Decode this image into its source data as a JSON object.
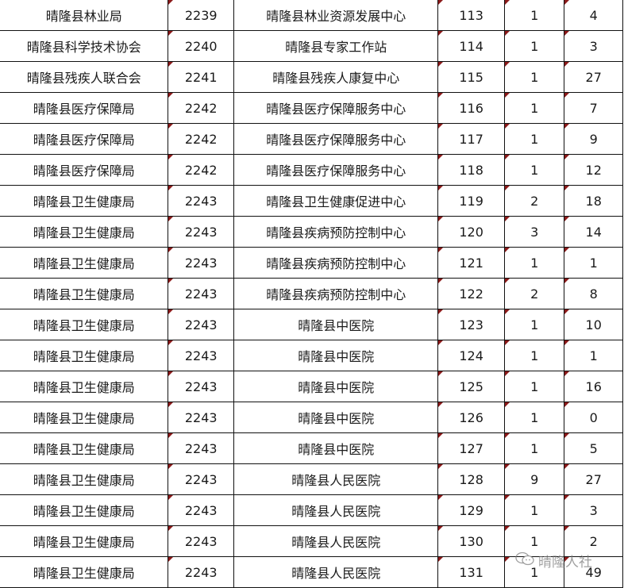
{
  "rows": [
    [
      "晴隆县林业局",
      "2239",
      "晴隆县林业资源发展中心",
      "113",
      "1",
      "4"
    ],
    [
      "晴隆县科学技术协会",
      "2240",
      "晴隆县专家工作站",
      "114",
      "1",
      "3"
    ],
    [
      "晴隆县残疾人联合会",
      "2241",
      "晴隆县残疾人康复中心",
      "115",
      "1",
      "27"
    ],
    [
      "晴隆县医疗保障局",
      "2242",
      "晴隆县医疗保障服务中心",
      "116",
      "1",
      "7"
    ],
    [
      "晴隆县医疗保障局",
      "2242",
      "晴隆县医疗保障服务中心",
      "117",
      "1",
      "9"
    ],
    [
      "晴隆县医疗保障局",
      "2242",
      "晴隆县医疗保障服务中心",
      "118",
      "1",
      "12"
    ],
    [
      "晴隆县卫生健康局",
      "2243",
      "晴隆县卫生健康促进中心",
      "119",
      "2",
      "18"
    ],
    [
      "晴隆县卫生健康局",
      "2243",
      "晴隆县疾病预防控制中心",
      "120",
      "3",
      "14"
    ],
    [
      "晴隆县卫生健康局",
      "2243",
      "晴隆县疾病预防控制中心",
      "121",
      "1",
      "1"
    ],
    [
      "晴隆县卫生健康局",
      "2243",
      "晴隆县疾病预防控制中心",
      "122",
      "2",
      "8"
    ],
    [
      "晴隆县卫生健康局",
      "2243",
      "晴隆县中医院",
      "123",
      "1",
      "10"
    ],
    [
      "晴隆县卫生健康局",
      "2243",
      "晴隆县中医院",
      "124",
      "1",
      "1"
    ],
    [
      "晴隆县卫生健康局",
      "2243",
      "晴隆县中医院",
      "125",
      "1",
      "16"
    ],
    [
      "晴隆县卫生健康局",
      "2243",
      "晴隆县中医院",
      "126",
      "1",
      "0"
    ],
    [
      "晴隆县卫生健康局",
      "2243",
      "晴隆县中医院",
      "127",
      "1",
      "5"
    ],
    [
      "晴隆县卫生健康局",
      "2243",
      "晴隆县人民医院",
      "128",
      "9",
      "27"
    ],
    [
      "晴隆县卫生健康局",
      "2243",
      "晴隆县人民医院",
      "129",
      "1",
      "3"
    ],
    [
      "晴隆县卫生健康局",
      "2243",
      "晴隆县人民医院",
      "130",
      "1",
      "2"
    ],
    [
      "晴隆县卫生健康局",
      "2243",
      "晴隆县人民医院",
      "131",
      "1",
      "49"
    ]
  ],
  "watermark": {
    "icon": "wechat-icon",
    "text": "晴隆人社"
  },
  "colors": {
    "marker": "#8b1a1a"
  }
}
